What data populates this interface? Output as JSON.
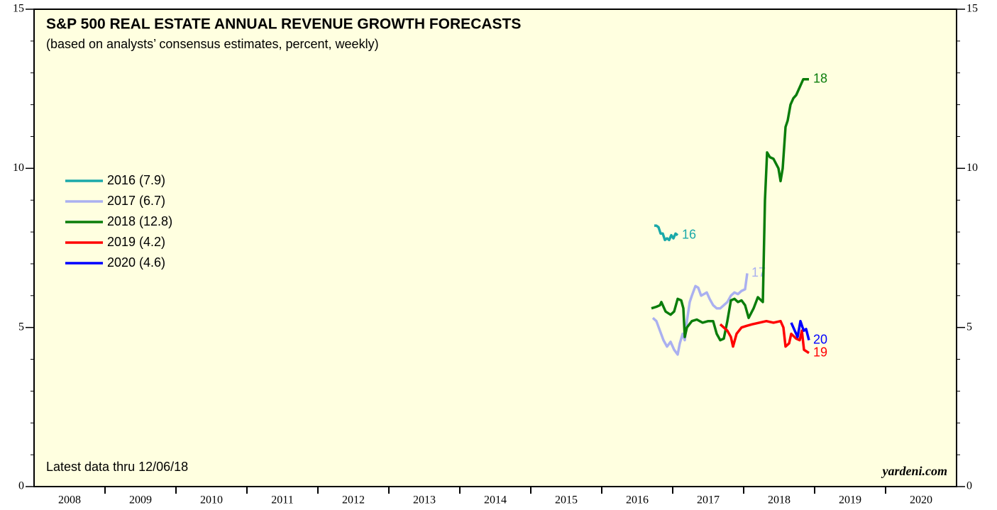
{
  "chart_data": {
    "type": "line",
    "title": "S&P 500 REAL ESTATE ANNUAL REVENUE GROWTH FORECASTS",
    "subtitle": "(based on analysts’ consensus estimates, percent, weekly)",
    "note": "Latest data thru 12/06/18",
    "source": "yardeni.com",
    "xlim": [
      2008,
      2021
    ],
    "xticks": [
      {
        "value": 2008,
        "label": "2008"
      },
      {
        "value": 2009,
        "label": "2009"
      },
      {
        "value": 2010,
        "label": "2010"
      },
      {
        "value": 2011,
        "label": "2011"
      },
      {
        "value": 2012,
        "label": "2012"
      },
      {
        "value": 2013,
        "label": "2013"
      },
      {
        "value": 2014,
        "label": "2014"
      },
      {
        "value": 2015,
        "label": "2015"
      },
      {
        "value": 2016,
        "label": "2016"
      },
      {
        "value": 2017,
        "label": "2017"
      },
      {
        "value": 2018,
        "label": "2018"
      },
      {
        "value": 2019,
        "label": "2019"
      },
      {
        "value": 2020,
        "label": "2020"
      }
    ],
    "ylim": [
      0,
      15
    ],
    "yticks": [
      0,
      5,
      10,
      15
    ],
    "yminorticks": [
      0,
      1,
      2,
      3,
      4,
      5,
      6,
      7,
      8,
      9,
      10,
      11,
      12,
      13,
      14,
      15
    ],
    "series": [
      {
        "name": "2016 (7.9)",
        "end_label": "16",
        "color": "#1aa9a9",
        "x": [
          2016.74,
          2016.77,
          2016.8,
          2016.83,
          2016.86,
          2016.89,
          2016.92,
          2016.95,
          2016.98,
          2017.01,
          2017.04,
          2017.07
        ],
        "values": [
          8.2,
          8.2,
          8.15,
          7.95,
          7.95,
          7.75,
          7.8,
          7.75,
          7.9,
          7.8,
          7.95,
          7.9
        ]
      },
      {
        "name": "2017 (6.7)",
        "end_label": "17",
        "color": "#aab0f0",
        "x": [
          2016.72,
          2016.77,
          2016.82,
          2016.87,
          2016.92,
          2016.97,
          2017.02,
          2017.07,
          2017.1,
          2017.14,
          2017.17,
          2017.2,
          2017.24,
          2017.27,
          2017.32,
          2017.36,
          2017.4,
          2017.44,
          2017.48,
          2017.52,
          2017.57,
          2017.62,
          2017.67,
          2017.72,
          2017.77,
          2017.82,
          2017.87,
          2017.92,
          2017.97,
          2018.02,
          2018.05
        ],
        "values": [
          5.3,
          5.2,
          4.9,
          4.6,
          4.4,
          4.55,
          4.3,
          4.15,
          4.5,
          4.8,
          4.6,
          5.2,
          5.8,
          6.0,
          6.3,
          6.25,
          6.0,
          6.05,
          6.1,
          5.9,
          5.7,
          5.6,
          5.6,
          5.7,
          5.8,
          6.0,
          6.1,
          6.05,
          6.15,
          6.2,
          6.7
        ]
      },
      {
        "name": "2018 (12.8)",
        "end_label": "18",
        "color": "#0a7d0a",
        "x": [
          2016.7,
          2016.77,
          2016.82,
          2016.84,
          2016.9,
          2016.97,
          2017.02,
          2017.07,
          2017.12,
          2017.15,
          2017.17,
          2017.2,
          2017.27,
          2017.34,
          2017.42,
          2017.5,
          2017.57,
          2017.62,
          2017.67,
          2017.72,
          2017.77,
          2017.82,
          2017.87,
          2017.92,
          2017.97,
          2018.02,
          2018.07,
          2018.14,
          2018.2,
          2018.27,
          2018.3,
          2018.33,
          2018.37,
          2018.42,
          2018.49,
          2018.52,
          2018.55,
          2018.59,
          2018.62,
          2018.66,
          2018.7,
          2018.74,
          2018.8,
          2018.84,
          2018.92
        ],
        "values": [
          5.6,
          5.65,
          5.7,
          5.8,
          5.5,
          5.4,
          5.5,
          5.9,
          5.85,
          5.6,
          4.7,
          5.0,
          5.2,
          5.25,
          5.15,
          5.2,
          5.2,
          4.8,
          4.6,
          4.65,
          5.2,
          5.85,
          5.9,
          5.8,
          5.85,
          5.7,
          5.3,
          5.6,
          5.95,
          5.8,
          9.0,
          10.5,
          10.35,
          10.3,
          10.0,
          9.6,
          10.0,
          11.3,
          11.5,
          12.0,
          12.2,
          12.3,
          12.6,
          12.8,
          12.8
        ]
      },
      {
        "name": "2019 (4.2)",
        "end_label": "19",
        "color": "#ff0000",
        "x": [
          2017.67,
          2017.72,
          2017.77,
          2017.82,
          2017.85,
          2017.9,
          2017.97,
          2018.04,
          2018.12,
          2018.22,
          2018.32,
          2018.42,
          2018.52,
          2018.56,
          2018.59,
          2018.64,
          2018.67,
          2018.74,
          2018.79,
          2018.82,
          2018.85,
          2018.92
        ],
        "values": [
          5.1,
          5.0,
          4.9,
          4.7,
          4.4,
          4.8,
          5.0,
          5.05,
          5.1,
          5.15,
          5.2,
          5.15,
          5.2,
          5.0,
          4.4,
          4.5,
          4.8,
          4.65,
          4.6,
          4.9,
          4.3,
          4.2
        ]
      },
      {
        "name": "2020 (4.6)",
        "end_label": "20",
        "color": "#0000ff",
        "x": [
          2018.67,
          2018.7,
          2018.72,
          2018.76,
          2018.8,
          2018.83,
          2018.85,
          2018.88,
          2018.92
        ],
        "values": [
          5.15,
          5.0,
          4.9,
          4.7,
          5.2,
          5.0,
          4.9,
          4.95,
          4.6
        ]
      }
    ]
  }
}
